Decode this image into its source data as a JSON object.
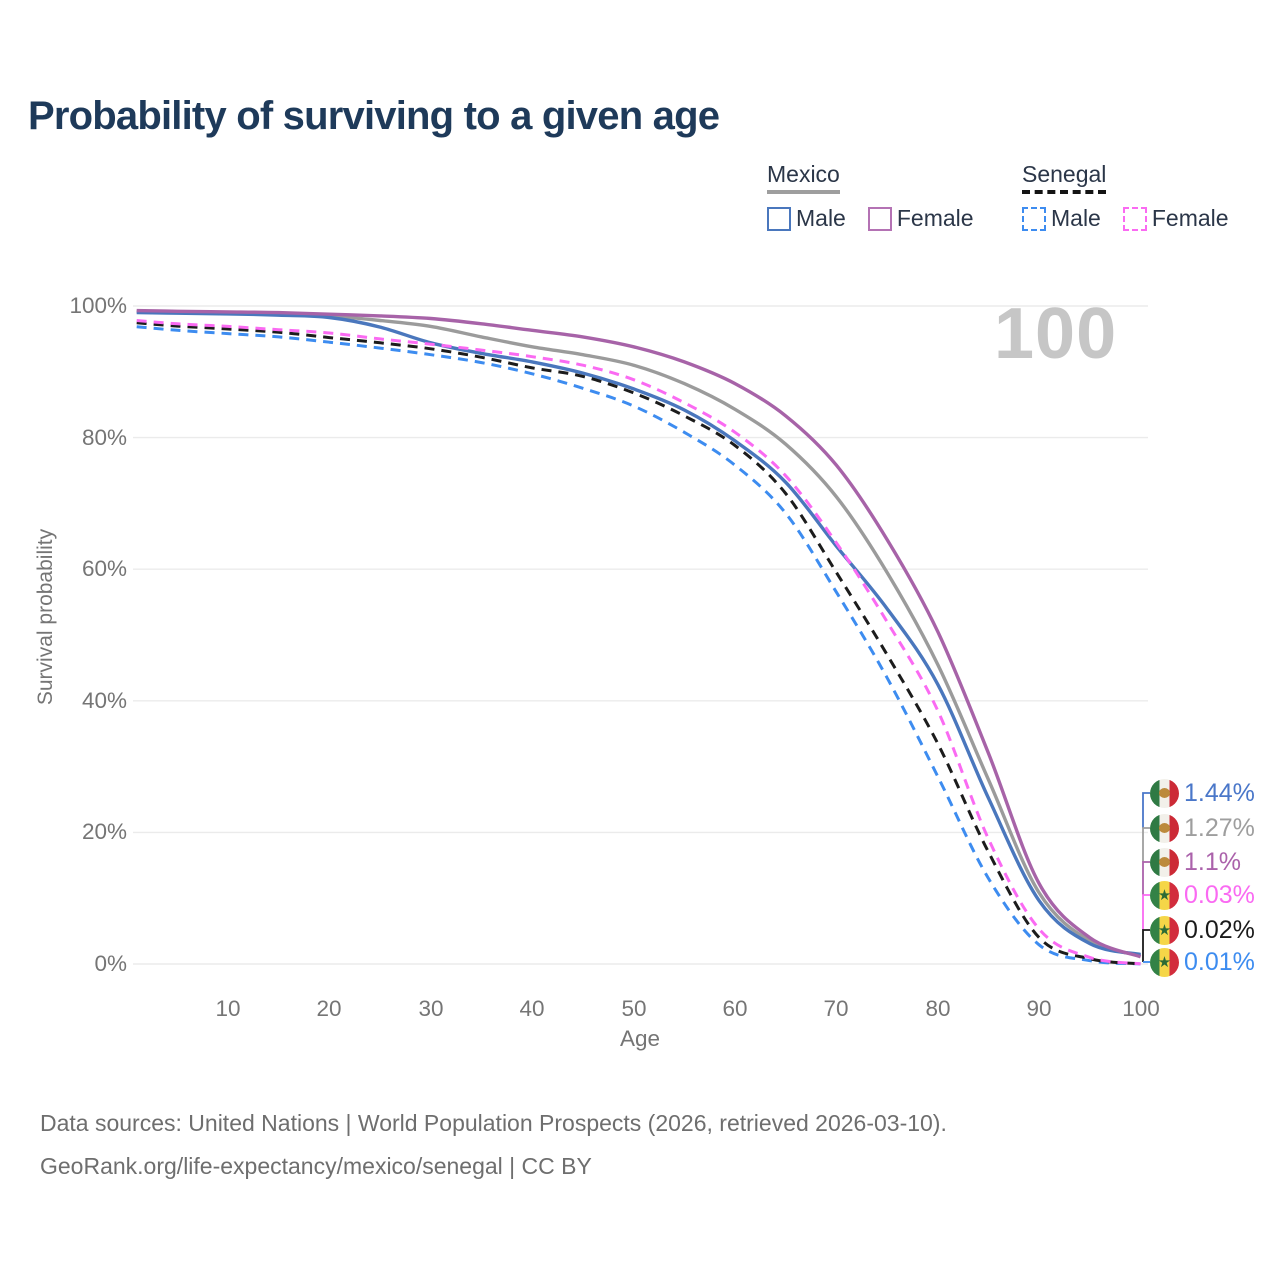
{
  "header": {
    "title": "Probability of surviving to a given age"
  },
  "legend": {
    "groups": [
      {
        "name": "Mexico",
        "underline_color": "#9e9e9e",
        "underline_style": "solid",
        "items": [
          {
            "label": "Male",
            "color": "#4a77bd",
            "dash": false
          },
          {
            "label": "Female",
            "color": "#b472b4",
            "dash": false
          }
        ]
      },
      {
        "name": "Senegal",
        "underline_color": "#141414",
        "underline_style": "dashed",
        "items": [
          {
            "label": "Male",
            "color": "#3d8cf0",
            "dash": true
          },
          {
            "label": "Female",
            "color": "#fa6af2",
            "dash": true
          }
        ]
      }
    ]
  },
  "watermark": "100",
  "axis": {
    "x_label": "Age",
    "y_label": "Survival probability",
    "x_ticks": [
      "10",
      "20",
      "30",
      "40",
      "50",
      "60",
      "70",
      "80",
      "90",
      "100"
    ],
    "y_ticks": [
      "100%",
      "80%",
      "60%",
      "40%",
      "20%",
      "0%"
    ]
  },
  "footer": {
    "line1": "Data sources: United Nations | World Population Prospects (2026, retrieved 2026-03-10).",
    "line2": "GeoRank.org/life-expectancy/mexico/senegal | CC BY"
  },
  "chart_data": {
    "type": "line",
    "title": "Probability of surviving to a given age",
    "xlabel": "Age",
    "ylabel": "Survival probability",
    "x_range": [
      1,
      100
    ],
    "y_range_percent": [
      0,
      100
    ],
    "grid": "horizontal",
    "hover_age": "100",
    "ages": [
      1,
      5,
      10,
      15,
      20,
      25,
      30,
      35,
      40,
      45,
      50,
      55,
      60,
      65,
      70,
      75,
      80,
      85,
      90,
      95,
      100
    ],
    "series": [
      {
        "id": "mx_both",
        "country": "Mexico",
        "sex": "Both sexes",
        "color": "#9b9b9b",
        "dash": false,
        "values": [
          99.15,
          99.05,
          98.95,
          98.8,
          98.5,
          97.8,
          96.9,
          95.3,
          93.8,
          92.6,
          91.0,
          88.2,
          84.3,
          79.0,
          71.0,
          59.5,
          45.5,
          28.0,
          10.8,
          3.5,
          1.27
        ]
      },
      {
        "id": "mx_male",
        "country": "Mexico",
        "sex": "Male",
        "color": "#4a77bd",
        "dash": false,
        "values": [
          99.0,
          98.9,
          98.8,
          98.6,
          98.25,
          96.8,
          94.4,
          92.8,
          91.5,
          89.8,
          87.4,
          84.2,
          79.5,
          73.2,
          63.5,
          54.0,
          42.5,
          25.2,
          9.6,
          3.1,
          1.44
        ]
      },
      {
        "id": "mx_female",
        "country": "Mexico",
        "sex": "Female",
        "color": "#a763a8",
        "dash": false,
        "values": [
          99.3,
          99.2,
          99.1,
          99.0,
          98.75,
          98.5,
          98.1,
          97.3,
          96.3,
          95.3,
          93.8,
          91.5,
          88.2,
          83.3,
          75.8,
          64.5,
          50.5,
          32.0,
          12.2,
          4.0,
          1.1
        ]
      },
      {
        "id": "sn_male",
        "country": "Senegal",
        "sex": "Male",
        "color": "#3d8cf0",
        "dash": true,
        "values": [
          96.85,
          96.3,
          95.8,
          95.3,
          94.5,
          93.6,
          92.6,
          91.4,
          89.7,
          87.5,
          84.8,
          80.8,
          75.8,
          68.5,
          56.5,
          43.5,
          28.5,
          13.0,
          2.9,
          0.5,
          0.01
        ]
      },
      {
        "id": "sn_both",
        "country": "Senegal",
        "sex": "Both sexes",
        "color": "#1c1c1c",
        "dash": true,
        "values": [
          97.45,
          96.95,
          96.5,
          96.0,
          95.2,
          94.4,
          93.5,
          92.2,
          90.6,
          89.3,
          86.8,
          83.3,
          78.8,
          71.5,
          59.5,
          47.0,
          33.5,
          17.0,
          4.0,
          0.8,
          0.02
        ]
      },
      {
        "id": "sn_female",
        "country": "Senegal",
        "sex": "Female",
        "color": "#fa6af2",
        "dash": true,
        "values": [
          97.8,
          97.3,
          96.9,
          96.4,
          95.9,
          95.0,
          94.2,
          93.3,
          92.3,
          91.0,
          88.8,
          85.3,
          80.8,
          74.2,
          64.0,
          52.0,
          38.5,
          19.0,
          5.3,
          1.0,
          0.03
        ]
      }
    ],
    "end_labels": [
      {
        "series": "mx_male",
        "flag": "mexico",
        "text": "1.44%",
        "color": "#4a77c9"
      },
      {
        "series": "mx_both",
        "flag": "mexico",
        "text": "1.27%",
        "color": "#9e9e9e"
      },
      {
        "series": "mx_female",
        "flag": "mexico",
        "text": "1.1%",
        "color": "#ab62ab"
      },
      {
        "series": "sn_female",
        "flag": "senegal",
        "text": "0.03%",
        "color": "#fa6af2"
      },
      {
        "series": "sn_both",
        "flag": "senegal",
        "text": "0.02%",
        "color": "#1a1a1a"
      },
      {
        "series": "sn_male",
        "flag": "senegal",
        "text": "0.01%",
        "color": "#3d8cf0"
      }
    ],
    "flags": {
      "mexico": {
        "stripes": [
          "#2f7a44",
          "#f2f0ea",
          "#cc2a36"
        ],
        "emblem": "dot",
        "emblem_color": "#bc8a3c"
      },
      "senegal": {
        "stripes": [
          "#338246",
          "#f5d648",
          "#d22d3d"
        ],
        "emblem": "star",
        "emblem_color": "#2d6b35"
      }
    }
  }
}
